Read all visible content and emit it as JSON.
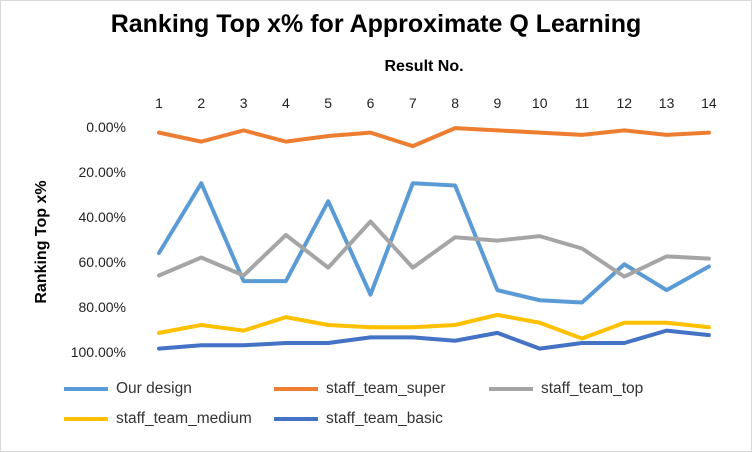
{
  "chart_data": {
    "type": "line",
    "title": "Ranking Top x% for Approximate Q Learning",
    "xlabel": "Result No.",
    "ylabel": "Ranking Top x%",
    "x": [
      1,
      2,
      3,
      4,
      5,
      6,
      7,
      8,
      9,
      10,
      11,
      12,
      13,
      14
    ],
    "y_ticks": [
      "0.00%",
      "20.00%",
      "40.00%",
      "60.00%",
      "80.00%",
      "100.00%"
    ],
    "ylim": [
      0,
      100
    ],
    "y_inverted": true,
    "x_axis_position": "top",
    "grid": false,
    "legend_position": "bottom",
    "series": [
      {
        "name": "Our design",
        "color": "#5B9BD5",
        "values": [
          56,
          25,
          68.5,
          68.5,
          33,
          74.5,
          25,
          26,
          72.5,
          77,
          78,
          61,
          72.5,
          62
        ]
      },
      {
        "name": "staff_team_super",
        "color": "#ED7D31",
        "values": [
          2.5,
          6.5,
          1.5,
          6.5,
          4,
          2.5,
          8.5,
          0.5,
          1.5,
          2.5,
          3.5,
          1.5,
          3.5,
          2.5
        ]
      },
      {
        "name": "staff_team_top",
        "color": "#A5A5A5",
        "values": [
          66,
          58,
          66,
          48,
          62.5,
          42,
          62.5,
          49,
          50.5,
          48.5,
          54,
          66.5,
          57.5,
          58.5
        ]
      },
      {
        "name": "staff_team_medium",
        "color": "#FFC000",
        "values": [
          91.5,
          88,
          90.5,
          84.5,
          88,
          89,
          89,
          88,
          83.5,
          87,
          94,
          87,
          87,
          89
        ]
      },
      {
        "name": "staff_team_basic",
        "color": "#4472C4",
        "values": [
          98.5,
          97,
          97,
          96,
          96,
          93.5,
          93.5,
          95,
          91.5,
          98.5,
          96,
          96,
          90.5,
          92.5
        ]
      }
    ]
  }
}
